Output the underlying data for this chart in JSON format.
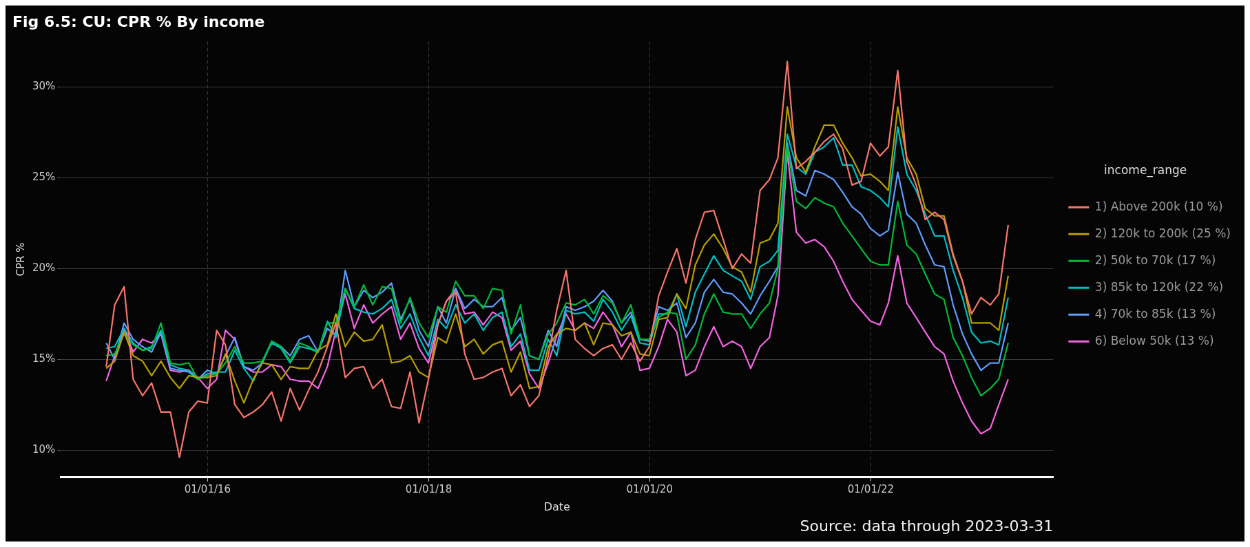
{
  "chart_data": {
    "type": "line",
    "title": "Fig 6.5: CU: CPR % By income",
    "xlabel": "Date",
    "ylabel": "CPR %",
    "legend_title": "income_range",
    "annotations": [
      "Source: data through 2023-03-31"
    ],
    "x": [
      "2015-01-31",
      "2015-02-28",
      "2015-03-31",
      "2015-04-30",
      "2015-05-31",
      "2015-06-30",
      "2015-07-31",
      "2015-08-31",
      "2015-09-30",
      "2015-10-31",
      "2015-11-30",
      "2015-12-31",
      "2016-01-31",
      "2016-02-29",
      "2016-03-31",
      "2016-04-30",
      "2016-05-31",
      "2016-06-30",
      "2016-07-31",
      "2016-08-31",
      "2016-09-30",
      "2016-10-31",
      "2016-11-30",
      "2016-12-31",
      "2017-01-31",
      "2017-02-28",
      "2017-03-31",
      "2017-04-30",
      "2017-05-31",
      "2017-06-30",
      "2017-07-31",
      "2017-08-31",
      "2017-09-30",
      "2017-10-31",
      "2017-11-30",
      "2017-12-31",
      "2018-01-31",
      "2018-02-28",
      "2018-03-31",
      "2018-04-30",
      "2018-05-31",
      "2018-06-30",
      "2018-07-31",
      "2018-08-31",
      "2018-09-30",
      "2018-10-31",
      "2018-11-30",
      "2018-12-31",
      "2019-01-31",
      "2019-02-28",
      "2019-03-31",
      "2019-04-30",
      "2019-05-31",
      "2019-06-30",
      "2019-07-31",
      "2019-08-31",
      "2019-09-30",
      "2019-10-31",
      "2019-11-30",
      "2019-12-31",
      "2020-01-31",
      "2020-02-29",
      "2020-03-31",
      "2020-04-30",
      "2020-05-31",
      "2020-06-30",
      "2020-07-31",
      "2020-08-31",
      "2020-09-30",
      "2020-10-31",
      "2020-11-30",
      "2020-12-31",
      "2021-01-31",
      "2021-02-28",
      "2021-03-31",
      "2021-04-30",
      "2021-05-31",
      "2021-06-30",
      "2021-07-31",
      "2021-08-31",
      "2021-09-30",
      "2021-10-31",
      "2021-11-30",
      "2021-12-31",
      "2022-01-31",
      "2022-02-28",
      "2022-03-31",
      "2022-04-30",
      "2022-05-31",
      "2022-06-30",
      "2022-07-31",
      "2022-08-31",
      "2022-09-30",
      "2022-10-31",
      "2022-11-30",
      "2022-12-31",
      "2023-01-31",
      "2023-02-28",
      "2023-03-31"
    ],
    "series": [
      {
        "name": "1) Above 200k (10 %)",
        "color": "#f8766d",
        "values": [
          14.6,
          18.0,
          19.0,
          13.9,
          13.0,
          13.7,
          12.1,
          12.1,
          9.6,
          12.1,
          12.7,
          12.6,
          16.6,
          15.8,
          12.5,
          11.8,
          12.1,
          12.5,
          13.2,
          11.6,
          13.4,
          12.2,
          13.3,
          14.3,
          15.7,
          17.0,
          14.0,
          14.5,
          14.6,
          13.4,
          13.9,
          12.4,
          12.3,
          14.3,
          11.5,
          13.9,
          16.9,
          18.2,
          18.7,
          15.3,
          13.9,
          14.0,
          14.3,
          14.5,
          13.0,
          13.6,
          12.4,
          13.0,
          15.2,
          17.7,
          19.9,
          16.1,
          15.6,
          15.2,
          15.6,
          15.8,
          15.0,
          15.9,
          14.9,
          15.7,
          18.5,
          19.8,
          21.1,
          19.2,
          21.6,
          23.1,
          23.2,
          21.6,
          20.0,
          20.8,
          20.3,
          24.3,
          24.9,
          26.1,
          31.4,
          25.5,
          25.9,
          26.4,
          27.0,
          27.4,
          26.6,
          24.6,
          24.8,
          26.9,
          26.2,
          26.7,
          30.9,
          25.9,
          24.6,
          22.7,
          23.1,
          22.7,
          20.7,
          19.3,
          17.5,
          18.4,
          18.0,
          18.6,
          22.4
        ]
      },
      {
        "name": "2) 120k to 200k (25 %)",
        "color": "#b79f00",
        "values": [
          14.5,
          14.9,
          16.5,
          15.2,
          14.9,
          14.1,
          14.9,
          14.0,
          13.4,
          14.1,
          14.0,
          14.0,
          14.1,
          15.3,
          13.8,
          12.6,
          13.9,
          14.8,
          14.7,
          13.9,
          14.6,
          14.5,
          14.5,
          15.5,
          15.8,
          17.5,
          15.7,
          16.5,
          16.0,
          16.1,
          16.9,
          14.8,
          14.9,
          15.2,
          14.3,
          14.0,
          16.2,
          15.9,
          17.5,
          15.7,
          16.1,
          15.3,
          15.8,
          16.0,
          14.3,
          15.4,
          13.4,
          13.5,
          15.7,
          16.4,
          16.7,
          16.6,
          17.0,
          15.8,
          17.0,
          16.9,
          16.3,
          16.5,
          15.3,
          15.2,
          17.2,
          17.3,
          18.6,
          17.8,
          20.2,
          21.3,
          21.9,
          21.1,
          20.1,
          19.8,
          18.7,
          21.4,
          21.6,
          22.5,
          28.9,
          26.1,
          25.3,
          26.7,
          27.9,
          27.9,
          26.9,
          26.1,
          25.1,
          25.2,
          24.8,
          24.3,
          28.9,
          26.1,
          25.2,
          23.3,
          22.9,
          22.9,
          20.8,
          19.3,
          17.0,
          17.0,
          17.0,
          16.6,
          19.6
        ]
      },
      {
        "name": "2) 50k to 70k (17 %)",
        "color": "#00ba38",
        "values": [
          15.2,
          15.3,
          16.4,
          15.8,
          15.5,
          15.6,
          17.0,
          14.8,
          14.7,
          14.8,
          13.9,
          14.1,
          14.2,
          14.8,
          15.7,
          14.8,
          14.8,
          14.9,
          16.0,
          15.7,
          14.9,
          15.9,
          15.7,
          15.4,
          17.0,
          17.0,
          18.9,
          17.9,
          19.1,
          18.0,
          19.0,
          18.9,
          17.0,
          18.4,
          17.0,
          16.2,
          17.9,
          17.6,
          19.3,
          18.5,
          18.5,
          17.8,
          18.9,
          18.8,
          16.4,
          18.0,
          15.2,
          15.0,
          16.4,
          17.0,
          18.1,
          18.0,
          18.3,
          17.5,
          18.5,
          18.1,
          17.0,
          18.0,
          16.1,
          16.1,
          17.3,
          17.6,
          17.5,
          15.0,
          15.8,
          17.5,
          18.6,
          17.6,
          17.5,
          17.5,
          16.7,
          17.5,
          18.1,
          20.0,
          26.7,
          23.7,
          23.3,
          23.9,
          23.6,
          23.4,
          22.5,
          21.8,
          21.1,
          20.4,
          20.2,
          20.2,
          23.7,
          21.3,
          20.8,
          19.7,
          18.6,
          18.3,
          16.2,
          15.2,
          14.0,
          13.0,
          13.4,
          13.9,
          15.9
        ]
      },
      {
        "name": "3) 85k to 120k (22 %)",
        "color": "#00bfc4",
        "values": [
          15.6,
          15.7,
          16.7,
          15.9,
          15.5,
          15.7,
          16.6,
          14.7,
          14.5,
          14.4,
          13.9,
          14.2,
          14.3,
          14.3,
          15.5,
          14.5,
          13.8,
          14.9,
          15.9,
          15.6,
          14.8,
          15.7,
          15.6,
          15.4,
          17.1,
          16.2,
          18.9,
          17.8,
          17.6,
          17.5,
          17.8,
          18.3,
          16.7,
          17.5,
          16.2,
          15.2,
          17.2,
          16.7,
          18.0,
          17.0,
          17.5,
          16.6,
          17.3,
          17.6,
          15.7,
          16.4,
          14.4,
          14.4,
          16.1,
          15.2,
          17.7,
          17.5,
          17.6,
          17.1,
          18.3,
          17.6,
          16.6,
          17.4,
          15.9,
          15.8,
          17.5,
          17.5,
          18.6,
          16.8,
          18.7,
          19.7,
          20.7,
          19.9,
          19.6,
          19.3,
          18.3,
          20.1,
          20.4,
          21.0,
          27.4,
          25.6,
          25.2,
          26.4,
          26.7,
          27.2,
          25.7,
          25.7,
          24.5,
          24.3,
          23.9,
          23.4,
          27.8,
          25.2,
          24.3,
          23.0,
          21.8,
          21.8,
          19.9,
          18.4,
          16.5,
          15.9,
          16.0,
          15.8,
          18.4
        ]
      },
      {
        "name": "4) 70k to 85k (13 %)",
        "color": "#619cff",
        "values": [
          15.9,
          15.0,
          17.0,
          16.1,
          15.7,
          15.4,
          16.5,
          14.5,
          14.4,
          14.3,
          13.9,
          14.4,
          14.2,
          15.2,
          16.2,
          14.6,
          14.4,
          14.8,
          16.0,
          15.7,
          15.2,
          16.1,
          16.3,
          15.4,
          16.7,
          16.3,
          19.9,
          17.9,
          18.8,
          18.4,
          18.7,
          19.2,
          17.2,
          18.3,
          16.6,
          15.7,
          17.9,
          17.0,
          18.9,
          17.8,
          18.3,
          17.9,
          17.9,
          18.4,
          16.6,
          17.3,
          15.2,
          15.0,
          16.6,
          15.7,
          17.9,
          17.7,
          17.9,
          18.2,
          18.8,
          18.2,
          17.0,
          17.6,
          16.1,
          16.0,
          17.9,
          17.7,
          18.1,
          16.2,
          17.0,
          18.7,
          19.4,
          18.7,
          18.6,
          18.1,
          17.5,
          18.5,
          19.3,
          20.1,
          26.9,
          24.3,
          24.0,
          25.4,
          25.2,
          24.9,
          24.2,
          23.4,
          23.0,
          22.2,
          21.8,
          22.1,
          25.3,
          23.0,
          22.5,
          21.3,
          20.2,
          20.1,
          18.0,
          16.4,
          15.3,
          14.4,
          14.8,
          14.8,
          17.0
        ]
      },
      {
        "name": "6) Below 50k (13 %)",
        "color": "#f564e3",
        "values": [
          13.8,
          15.2,
          16.7,
          15.4,
          16.1,
          15.9,
          16.4,
          14.4,
          14.3,
          14.4,
          14.0,
          13.4,
          13.9,
          16.6,
          16.1,
          14.6,
          14.3,
          14.3,
          14.7,
          14.6,
          13.9,
          13.8,
          13.8,
          13.4,
          14.6,
          16.6,
          18.6,
          16.7,
          18.0,
          17.0,
          17.5,
          17.9,
          16.1,
          17.0,
          15.6,
          14.8,
          16.9,
          18.2,
          18.9,
          17.5,
          17.6,
          16.9,
          17.6,
          17.3,
          15.5,
          16.0,
          14.2,
          13.4,
          14.8,
          16.3,
          17.5,
          16.6,
          17.0,
          16.7,
          17.6,
          16.9,
          15.7,
          16.5,
          14.4,
          14.5,
          15.7,
          17.2,
          16.5,
          14.1,
          14.4,
          15.7,
          16.8,
          15.7,
          16.0,
          15.7,
          14.5,
          15.7,
          16.2,
          18.5,
          26.4,
          22.0,
          21.4,
          21.6,
          21.2,
          20.4,
          19.3,
          18.3,
          17.7,
          17.1,
          16.9,
          18.1,
          20.7,
          18.1,
          17.3,
          16.5,
          15.7,
          15.3,
          13.8,
          12.6,
          11.6,
          10.9,
          11.2,
          12.5,
          13.9
        ]
      }
    ],
    "xlim": [
      "2014-09-03",
      "2023-08-27"
    ],
    "xticks": [
      {
        "value": "2016-01-01",
        "label": "01/01/16"
      },
      {
        "value": "2018-01-01",
        "label": "01/01/18"
      },
      {
        "value": "2020-01-01",
        "label": "01/01/20"
      },
      {
        "value": "2022-01-01",
        "label": "01/01/22"
      }
    ],
    "ylim": [
      8.5,
      32.5
    ],
    "yticks": [
      {
        "value": 10,
        "label": "10%"
      },
      {
        "value": 15,
        "label": "15%"
      },
      {
        "value": 20,
        "label": "20%"
      },
      {
        "value": 25,
        "label": "25%"
      },
      {
        "value": 30,
        "label": "30%"
      }
    ],
    "grid": true,
    "legend": "right",
    "marker": "none",
    "line_style": "solid"
  }
}
